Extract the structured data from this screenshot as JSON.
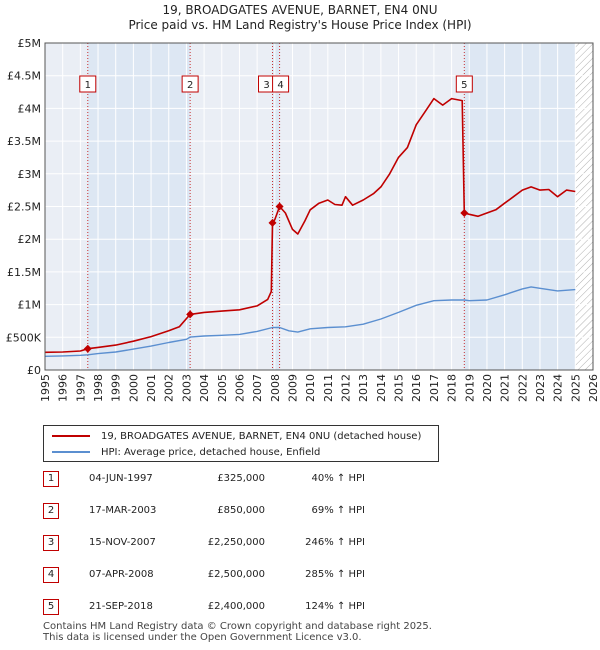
{
  "title": {
    "line1": "19, BROADGATES AVENUE, BARNET, EN4 0NU",
    "line2": "Price paid vs. HM Land Registry's House Price Index (HPI)"
  },
  "colors": {
    "price": "#c00000",
    "hpi": "#5b8fd0",
    "shade": "#dde7f3",
    "hatch": "#b0b0b0",
    "grid": "#ffffff"
  },
  "legend": {
    "price_label": "19, BROADGATES AVENUE, BARNET, EN4 0NU (detached house)",
    "hpi_label": "HPI: Average price, detached house, Enfield"
  },
  "sales": [
    {
      "num": "1",
      "date": "04-JUN-1997",
      "price": "£325,000",
      "hpi": "40% ↑ HPI"
    },
    {
      "num": "2",
      "date": "17-MAR-2003",
      "price": "£850,000",
      "hpi": "69% ↑ HPI"
    },
    {
      "num": "3",
      "date": "15-NOV-2007",
      "price": "£2,250,000",
      "hpi": "246% ↑ HPI"
    },
    {
      "num": "4",
      "date": "07-APR-2008",
      "price": "£2,500,000",
      "hpi": "285% ↑ HPI"
    },
    {
      "num": "5",
      "date": "21-SEP-2018",
      "price": "£2,400,000",
      "hpi": "124% ↑ HPI"
    }
  ],
  "footer": {
    "line1": "Contains HM Land Registry data © Crown copyright and database right 2025.",
    "line2": "This data is licensed under the Open Government Licence v3.0."
  },
  "chart_data": {
    "type": "line",
    "x_range": [
      1995,
      2026
    ],
    "ylim": [
      0,
      5000000
    ],
    "y_ticks": [
      {
        "value": 0,
        "label": "£0"
      },
      {
        "value": 500000,
        "label": "£500K"
      },
      {
        "value": 1000000,
        "label": "£1M"
      },
      {
        "value": 1500000,
        "label": "£1.5M"
      },
      {
        "value": 2000000,
        "label": "£2M"
      },
      {
        "value": 2500000,
        "label": "£2.5M"
      },
      {
        "value": 3000000,
        "label": "£3M"
      },
      {
        "value": 3500000,
        "label": "£3.5M"
      },
      {
        "value": 4000000,
        "label": "£4M"
      },
      {
        "value": 4500000,
        "label": "£4.5M"
      },
      {
        "value": 5000000,
        "label": "£5M"
      }
    ],
    "x_ticks": [
      "1995",
      "1996",
      "1997",
      "1998",
      "1999",
      "2000",
      "2001",
      "2002",
      "2003",
      "2004",
      "2005",
      "2006",
      "2007",
      "2008",
      "2009",
      "2010",
      "2011",
      "2012",
      "2013",
      "2014",
      "2015",
      "2016",
      "2017",
      "2018",
      "2019",
      "2020",
      "2021",
      "2022",
      "2023",
      "2024",
      "2025",
      "2026"
    ],
    "shaded_periods": [
      [
        1997.42,
        2003.21
      ],
      [
        2007.87,
        2008.27
      ],
      [
        2018.72,
        2025.0
      ]
    ],
    "hatched_period": [
      2025.0,
      2026.0
    ],
    "sale_markers": [
      {
        "label": "1",
        "x": 1997.42,
        "y": 325000
      },
      {
        "label": "2",
        "x": 2003.21,
        "y": 850000
      },
      {
        "label": "3",
        "x": 2007.87,
        "y": 2250000
      },
      {
        "label": "4",
        "x": 2008.27,
        "y": 2500000
      },
      {
        "label": "5",
        "x": 2018.72,
        "y": 2400000
      }
    ],
    "series": [
      {
        "name": "19, BROADGATES AVENUE, BARNET, EN4 0NU (detached house)",
        "points": [
          [
            1995.0,
            270000
          ],
          [
            1996.0,
            275000
          ],
          [
            1997.0,
            290000
          ],
          [
            1997.42,
            325000
          ],
          [
            1998.0,
            345000
          ],
          [
            1999.0,
            380000
          ],
          [
            2000.0,
            440000
          ],
          [
            2001.0,
            510000
          ],
          [
            2002.0,
            600000
          ],
          [
            2002.6,
            660000
          ],
          [
            2003.21,
            850000
          ],
          [
            2004.0,
            880000
          ],
          [
            2005.0,
            900000
          ],
          [
            2006.0,
            920000
          ],
          [
            2007.0,
            980000
          ],
          [
            2007.6,
            1080000
          ],
          [
            2007.8,
            1200000
          ],
          [
            2007.87,
            2250000
          ],
          [
            2008.0,
            2300000
          ],
          [
            2008.27,
            2500000
          ],
          [
            2008.6,
            2400000
          ],
          [
            2009.0,
            2150000
          ],
          [
            2009.3,
            2080000
          ],
          [
            2009.7,
            2280000
          ],
          [
            2010.0,
            2450000
          ],
          [
            2010.5,
            2550000
          ],
          [
            2011.0,
            2600000
          ],
          [
            2011.4,
            2530000
          ],
          [
            2011.8,
            2520000
          ],
          [
            2012.0,
            2650000
          ],
          [
            2012.4,
            2520000
          ],
          [
            2013.0,
            2600000
          ],
          [
            2013.6,
            2700000
          ],
          [
            2014.0,
            2800000
          ],
          [
            2014.5,
            3000000
          ],
          [
            2015.0,
            3250000
          ],
          [
            2015.5,
            3400000
          ],
          [
            2016.0,
            3750000
          ],
          [
            2016.5,
            3950000
          ],
          [
            2017.0,
            4150000
          ],
          [
            2017.5,
            4050000
          ],
          [
            2018.0,
            4150000
          ],
          [
            2018.6,
            4120000
          ],
          [
            2018.72,
            2400000
          ],
          [
            2019.0,
            2380000
          ],
          [
            2019.5,
            2350000
          ],
          [
            2020.0,
            2400000
          ],
          [
            2020.5,
            2450000
          ],
          [
            2021.0,
            2550000
          ],
          [
            2021.5,
            2650000
          ],
          [
            2022.0,
            2750000
          ],
          [
            2022.5,
            2800000
          ],
          [
            2023.0,
            2750000
          ],
          [
            2023.5,
            2760000
          ],
          [
            2024.0,
            2650000
          ],
          [
            2024.5,
            2750000
          ],
          [
            2025.0,
            2730000
          ]
        ]
      },
      {
        "name": "HPI: Average price, detached house, Enfield",
        "points": [
          [
            1995.0,
            210000
          ],
          [
            1996.0,
            215000
          ],
          [
            1997.0,
            225000
          ],
          [
            1997.42,
            232000
          ],
          [
            1998.0,
            250000
          ],
          [
            1999.0,
            275000
          ],
          [
            2000.0,
            320000
          ],
          [
            2001.0,
            365000
          ],
          [
            2002.0,
            420000
          ],
          [
            2003.0,
            470000
          ],
          [
            2003.21,
            503000
          ],
          [
            2004.0,
            520000
          ],
          [
            2005.0,
            530000
          ],
          [
            2006.0,
            545000
          ],
          [
            2007.0,
            590000
          ],
          [
            2007.87,
            650000
          ],
          [
            2008.27,
            650000
          ],
          [
            2008.8,
            600000
          ],
          [
            2009.3,
            580000
          ],
          [
            2010.0,
            630000
          ],
          [
            2011.0,
            650000
          ],
          [
            2012.0,
            660000
          ],
          [
            2013.0,
            700000
          ],
          [
            2014.0,
            780000
          ],
          [
            2015.0,
            880000
          ],
          [
            2016.0,
            990000
          ],
          [
            2017.0,
            1060000
          ],
          [
            2018.0,
            1070000
          ],
          [
            2018.72,
            1070000
          ],
          [
            2019.0,
            1060000
          ],
          [
            2020.0,
            1070000
          ],
          [
            2021.0,
            1150000
          ],
          [
            2022.0,
            1240000
          ],
          [
            2022.5,
            1270000
          ],
          [
            2023.0,
            1250000
          ],
          [
            2024.0,
            1210000
          ],
          [
            2025.0,
            1230000
          ]
        ]
      }
    ]
  }
}
